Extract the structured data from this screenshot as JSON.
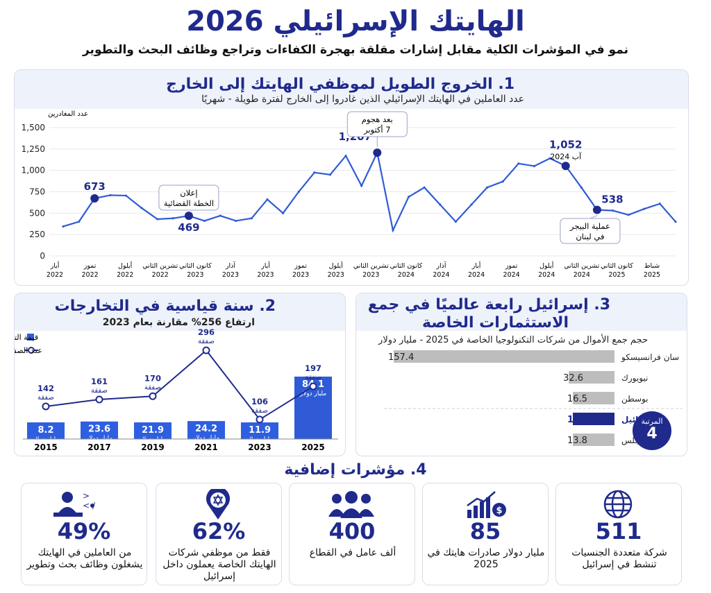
{
  "header": {
    "title": "الهايتك الإسرائيلي 2026",
    "subtitle": "نمو في المؤشرات الكلية مقابل إشارات مقلقة بهجرة الكفاءات وتراجع وظائف البحث والتطوير"
  },
  "section1": {
    "title": "1. الخروج الطويل لموظفي الهايتك إلى الخارج",
    "subtitle": "عدد العاملين في الهايتك الإسرائيلي الذين غادروا إلى الخارج لفترة طويلة - شهريًا",
    "y_axis_label": "عدد المغادرين",
    "callouts": [
      {
        "text_line1": "إعلان",
        "text_line2": "الخطة القضائية"
      },
      {
        "text_line1": "بعد هجوم",
        "text_line2": "7 أكتوبر"
      },
      {
        "text_line1": "عملية البيجر",
        "text_line2": "في لبنان"
      }
    ],
    "point_labels": [
      "673",
      "469",
      "1,207",
      "1,052",
      "538"
    ],
    "point_sublabel": "آب 2024"
  },
  "section2": {
    "title": "2. سنة قياسية في التخارجات",
    "subtitle": "ارتفاع 256% مقارنة بعام 2023",
    "legend_bars": "قيمة التخارجات (مليار دولار)",
    "legend_line": "عدد الصفقات",
    "deal_unit": "صفقة",
    "value_unit": "مليار دولار"
  },
  "section3": {
    "title_line1": "3. إسرائيل رابعة عالميًا في جمع",
    "title_line2": "الاستثمارات الخاصة",
    "subtitle": "حجم جمع الأموال من شركات التكنولوجيا الخاصة في 2025 - مليار دولار",
    "badge_label": "المرتبة",
    "badge_value": "4"
  },
  "section4": {
    "title": "4. مؤشرات إضافية",
    "cards": [
      {
        "value": "511",
        "desc": "شركة متعددة الجنسيات تنشط في إسرائيل",
        "icon": "globe-icon"
      },
      {
        "value": "85",
        "desc": "مليار دولار صادرات هايتك في 2025",
        "icon": "growth-chart-icon"
      },
      {
        "value": "400",
        "desc": "ألف عامل في القطاع",
        "icon": "people-icon"
      },
      {
        "value": "62%",
        "desc": "فقط من موظفي شركات الهايتك الخاصة يعملون داخل إسرائيل",
        "icon": "israel-pin-icon"
      },
      {
        "value": "49%",
        "desc": "من العاملين في الهايتك يشغلون وظائف بحث وتطوير",
        "icon": "developer-icon"
      }
    ]
  },
  "colors": {
    "navy": "#1f2a8c",
    "blue": "#2f5bd6",
    "grey_bar": "#bdbdbd"
  },
  "chart_data": [
    {
      "type": "line",
      "title": "1. الخروج الطويل لموظفي الهايتك إلى الخارج",
      "ylabel": "عدد المغادرين",
      "ylim": [
        0,
        1500
      ],
      "yticks": [
        "0",
        "250",
        "500",
        "750",
        "1,000",
        "1,250",
        "1,500"
      ],
      "x_tick_labels": [
        "أيار 2022",
        "تموز 2022",
        "أيلول 2022",
        "تشرين الثاني 2022",
        "كانون الثاني 2023",
        "آذار 2023",
        "أيار 2023",
        "تموز 2023",
        "أيلول 2023",
        "تشرين الثاني 2023",
        "كانون الثاني 2024",
        "آذار 2024",
        "أيار 2024",
        "تموز 2024",
        "أيلول 2024",
        "تشرين الثاني 2024",
        "كانون الثاني 2025",
        "شباط 2025"
      ],
      "values": [
        345,
        400,
        673,
        710,
        705,
        560,
        430,
        440,
        469,
        410,
        470,
        410,
        440,
        660,
        500,
        750,
        975,
        950,
        1170,
        820,
        1207,
        300,
        690,
        800,
        600,
        400,
        600,
        800,
        870,
        1080,
        1050,
        1140,
        1052,
        800,
        538,
        530,
        480,
        550,
        610,
        400
      ]
    },
    {
      "type": "bar",
      "title": "2. سنة قياسية في التخارجات",
      "categories": [
        "2015",
        "2017",
        "2019",
        "2021",
        "2023",
        "2025"
      ],
      "series": [
        {
          "name": "قيمة التخارجات (مليار دولار)",
          "values": [
            8.2,
            23.6,
            21.9,
            24.2,
            11.9,
            84.1
          ]
        },
        {
          "name": "عدد الصفقات",
          "values": [
            142,
            161,
            170,
            296,
            106,
            197
          ]
        }
      ]
    },
    {
      "type": "bar",
      "title": "3. إسرائيل رابعة عالميًا في جمع الاستثمارات الخاصة",
      "categories": [
        "سان فرانسيسكو",
        "نيويورك",
        "بوسطن",
        "إسرائيل",
        "لوس أنجلس"
      ],
      "values": [
        157.4,
        32.6,
        16.5,
        14.6,
        13.8
      ],
      "value_labels": [
        "157.4",
        "32.6",
        "16.5",
        "14.6",
        "13.8"
      ]
    }
  ]
}
